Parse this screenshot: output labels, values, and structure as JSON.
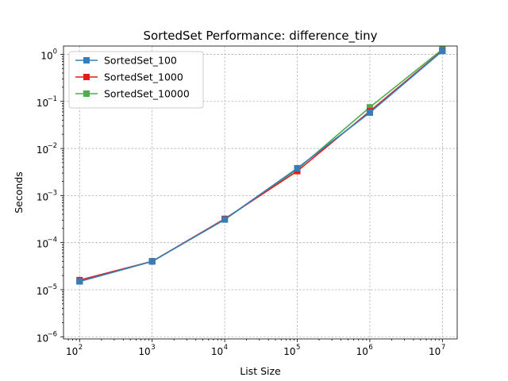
{
  "chart_data": {
    "type": "line",
    "title": "SortedSet Performance: difference_tiny",
    "xlabel": "List Size",
    "ylabel": "Seconds",
    "xscale": "log",
    "yscale": "log",
    "xlim": [
      60,
      16000000
    ],
    "ylim": [
      9e-07,
      1.5
    ],
    "xticks": [
      {
        "base": "10",
        "exp": "2",
        "value": 100
      },
      {
        "base": "10",
        "exp": "3",
        "value": 1000
      },
      {
        "base": "10",
        "exp": "4",
        "value": 10000
      },
      {
        "base": "10",
        "exp": "5",
        "value": 100000
      },
      {
        "base": "10",
        "exp": "6",
        "value": 1000000
      },
      {
        "base": "10",
        "exp": "7",
        "value": 10000000
      }
    ],
    "yticks": [
      {
        "base": "10",
        "exp": "−6",
        "value": 1e-06
      },
      {
        "base": "10",
        "exp": "−5",
        "value": 1e-05
      },
      {
        "base": "10",
        "exp": "−4",
        "value": 0.0001
      },
      {
        "base": "10",
        "exp": "−3",
        "value": 0.001
      },
      {
        "base": "10",
        "exp": "−2",
        "value": 0.01
      },
      {
        "base": "10",
        "exp": "−1",
        "value": 0.1
      },
      {
        "base": "10",
        "exp": "0",
        "value": 1
      }
    ],
    "grid": true,
    "legend_position": "top-left",
    "x": [
      100,
      1000,
      10000,
      100000,
      1000000,
      10000000
    ],
    "series": [
      {
        "name": "SortedSet_100",
        "color": "#377eb8",
        "values": [
          1.5e-05,
          4e-05,
          0.00031,
          0.0038,
          0.058,
          1.18
        ]
      },
      {
        "name": "SortedSet_1000",
        "color": "#e41a1c",
        "values": [
          1.6e-05,
          4e-05,
          0.00032,
          0.0033,
          0.062,
          1.2
        ]
      },
      {
        "name": "SortedSet_10000",
        "color": "#4daf4a",
        "values": [
          1.5e-05,
          4e-05,
          0.00031,
          0.0036,
          0.075,
          1.28
        ]
      }
    ],
    "draw_order": [
      0,
      2,
      1,
      0
    ]
  }
}
